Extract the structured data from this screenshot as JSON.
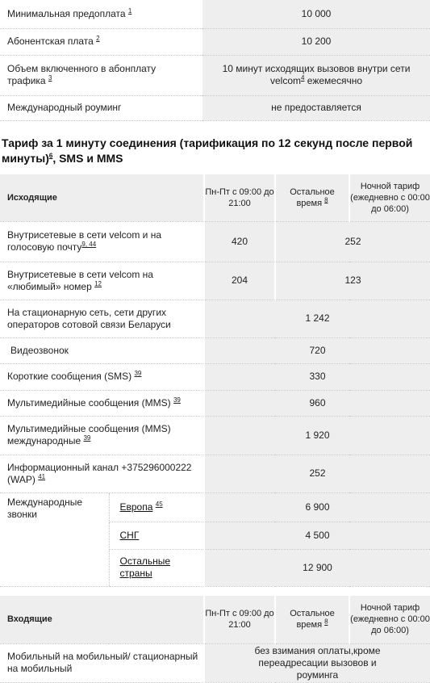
{
  "summary": [
    {
      "label": "Минимальная предоплата",
      "ref": "1",
      "value": "10 000"
    },
    {
      "label": "Абонентская плата",
      "ref": "2",
      "value": "10 200"
    },
    {
      "label_line1": "Объем включенного в абонплату",
      "label_line2": "трафика",
      "ref": "3",
      "value_line1": "10 минут исходящих вызовов внутри сети",
      "value_line2a": "velcom",
      "value_ref": "4",
      "value_line2b": " ежемесячно"
    },
    {
      "label": "Международный роуминг",
      "value": "не предоставляется"
    }
  ],
  "section_title": {
    "part1": "Тариф за 1 минуту соединения (тарификация по 12 секунд после первой минуты)",
    "ref": "6",
    "part2": ", SMS и MMS"
  },
  "outgoing_header": {
    "label": "Исходящие",
    "col1": "Пн-Пт с 09:00 до 21:00",
    "col2": "Остальное время",
    "col2_ref": "8",
    "col3": "Ночной тариф (ежедневно с 00:00 до 06:00)"
  },
  "rows": {
    "r1": {
      "label": "Внутрисетевые в сети velcom и на голосовую почту",
      "refs": "9, 44",
      "peak": "420",
      "offpeak": "252"
    },
    "r2": {
      "label": "Внутрисетевые в сети velcom на «любимый» номер",
      "ref": "12",
      "peak": "204",
      "offpeak": "123"
    },
    "r3": {
      "label": "На стационарную сеть, сети других операторов сотовой связи Беларуси",
      "value": "1 242"
    },
    "r4": {
      "label": "Видеозвонок",
      "value": "720"
    },
    "r5": {
      "label": "Короткие сообщения (SMS)",
      "ref": "39",
      "value": "330"
    },
    "r6": {
      "label": "Мультимедийные сообщения (MMS)",
      "ref": "39",
      "value": "960"
    },
    "r7": {
      "label": "Мультимедийные сообщения (MMS) международные",
      "ref": "39",
      "value": "1 920"
    },
    "r8": {
      "label": "Информационный канал +375296000222 (WAP)",
      "ref": "41",
      "value": "252"
    }
  },
  "international": {
    "label": "Международные звонки",
    "europe": {
      "label": "Европа",
      "ref": "45",
      "value": "6 900"
    },
    "cis": {
      "label": "СНГ",
      "value": "4 500"
    },
    "other": {
      "label": "Остальные страны",
      "value": "12 900"
    }
  },
  "incoming_header": {
    "label": "Входящие",
    "col1": "Пн-Пт с 09:00 до 21:00",
    "col2": "Остальное время",
    "col2_ref": "8",
    "col3": "Ночной тариф (ежедневно с 00:00 до 06:00)"
  },
  "incoming_row": {
    "label": "Мобильный на мобильный/ стационарный на мобильный",
    "value": "без взимания оплаты,кроме переадресации вызовов и роуминга"
  }
}
